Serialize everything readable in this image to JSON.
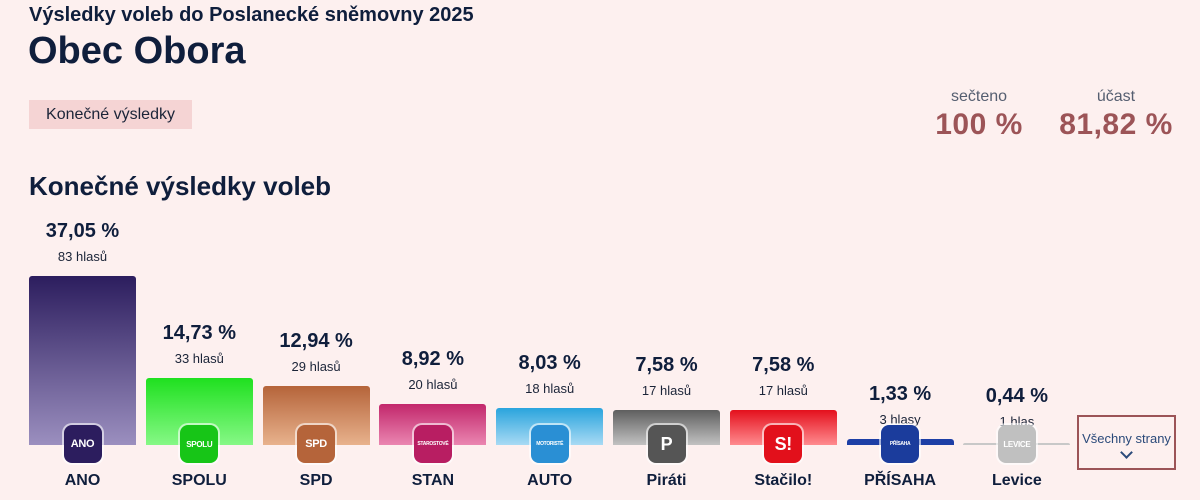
{
  "header": {
    "subtitle": "Výsledky voleb do Poslanecké sněmovny 2025",
    "town": "Obec Obora",
    "status_badge": "Konečné výsledky"
  },
  "stats": {
    "counted_label": "sečteno",
    "counted_value": "100 %",
    "turnout_label": "účast",
    "turnout_value": "81,82 %"
  },
  "section_title": "Konečné výsledky voleb",
  "all_parties_button": "Všechny strany",
  "chart_data": {
    "type": "bar",
    "title": "Konečné výsledky voleb",
    "xlabel": "",
    "ylabel": "",
    "ylim": [
      0,
      37.05
    ],
    "categories": [
      "ANO",
      "SPOLU",
      "SPD",
      "STAN",
      "AUTO",
      "Piráti",
      "Stačilo!",
      "PŘÍSAHA",
      "Levice"
    ],
    "values": [
      37.05,
      14.73,
      12.94,
      8.92,
      8.03,
      7.58,
      7.58,
      1.33,
      0.44
    ],
    "value_labels": [
      "37,05 %",
      "14,73 %",
      "12,94 %",
      "8,92 %",
      "8,03 %",
      "7,58 %",
      "7,58 %",
      "1,33 %",
      "0,44 %"
    ],
    "vote_labels": [
      "83 hlasů",
      "33 hlasů",
      "29 hlasů",
      "20 hlasů",
      "18 hlasů",
      "17 hlasů",
      "17 hlasů",
      "3 hlasy",
      "1 hlas"
    ],
    "logo_texts": [
      "ANO",
      "SPOLU",
      "SPD",
      "STAROSTOVÉ",
      "MOTORISTÉ",
      "P",
      "S!",
      "PŘÍSAHA",
      "LEVICE"
    ],
    "colors": [
      [
        "#2c1d5e",
        "#9b8fbf"
      ],
      [
        "#1fe01f",
        "#86f886"
      ],
      [
        "#b5643a",
        "#e8b28d"
      ],
      [
        "#c2276b",
        "#ea86b1"
      ],
      [
        "#2aa4dd",
        "#a8daf4"
      ],
      [
        "#5f5f5f",
        "#c2c2c2"
      ],
      [
        "#e4101d",
        "#ff8b8f"
      ],
      [
        "#1d3fa6",
        "#1d3fa6"
      ],
      [
        "#c8c8c8",
        "#c8c8c8"
      ]
    ],
    "logo_colors": [
      "#2c1d5e",
      "#17c517",
      "#b5643a",
      "#b81e62",
      "#2a8fd4",
      "#555555",
      "#e2101b",
      "#1b3c9c",
      "#c0c0c0"
    ]
  }
}
